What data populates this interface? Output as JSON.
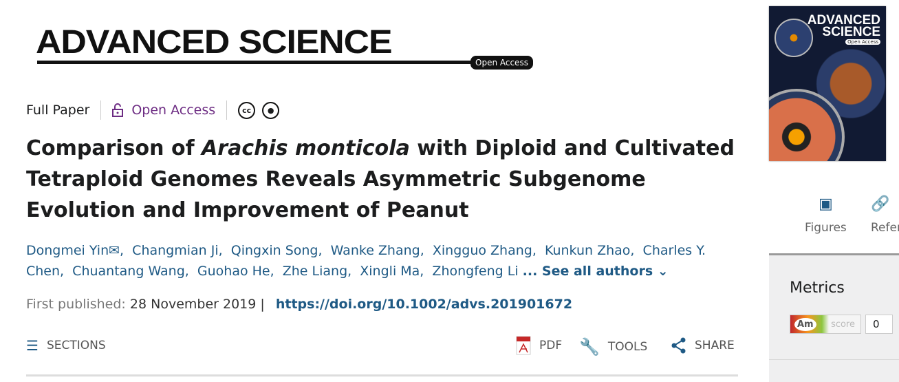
{
  "journal": {
    "name": "ADVANCED SCIENCE",
    "badge": "Open Access"
  },
  "meta": {
    "type": "Full Paper",
    "access": "Open Access",
    "license_icons": [
      "cc-icon",
      "by-icon"
    ]
  },
  "title": {
    "pre": "Comparison of ",
    "italic": "Arachis monticola",
    "post": " with Diploid and Cultivated Tetraploid Genomes Reveals Asymmetric Subgenome Evolution and Improvement of Peanut"
  },
  "authors": [
    "Dongmei Yin",
    "Changmian Ji",
    "Qingxin Song",
    "Wanke Zhang",
    "Xingguo Zhang",
    "Kunkun Zhao",
    "Charles Y. Chen",
    "Chuantang Wang",
    "Guohao He",
    "Zhe Liang",
    "Xingli Ma",
    "Zhongfeng Li"
  ],
  "see_all": "... See all authors",
  "published": {
    "label": "First published:",
    "date": "28 November 2019",
    "separator": "|",
    "doi": "https://doi.org/10.1002/advs.201901672"
  },
  "toolbar": {
    "sections": "SECTIONS",
    "pdf": "PDF",
    "tools": "TOOLS",
    "share": "SHARE"
  },
  "sidebar": {
    "cover_title": "ADVANCED SCIENCE",
    "cover_badge": "Open Access",
    "tabs": [
      {
        "label": "Figures"
      },
      {
        "label": "Refer"
      }
    ],
    "metrics_title": "Metrics",
    "altmetric_label": "Am",
    "altmetric_score_label": "score",
    "altmetric_score": "0"
  },
  "colors": {
    "link": "#1f5a85",
    "open_access": "#6d2c83"
  }
}
